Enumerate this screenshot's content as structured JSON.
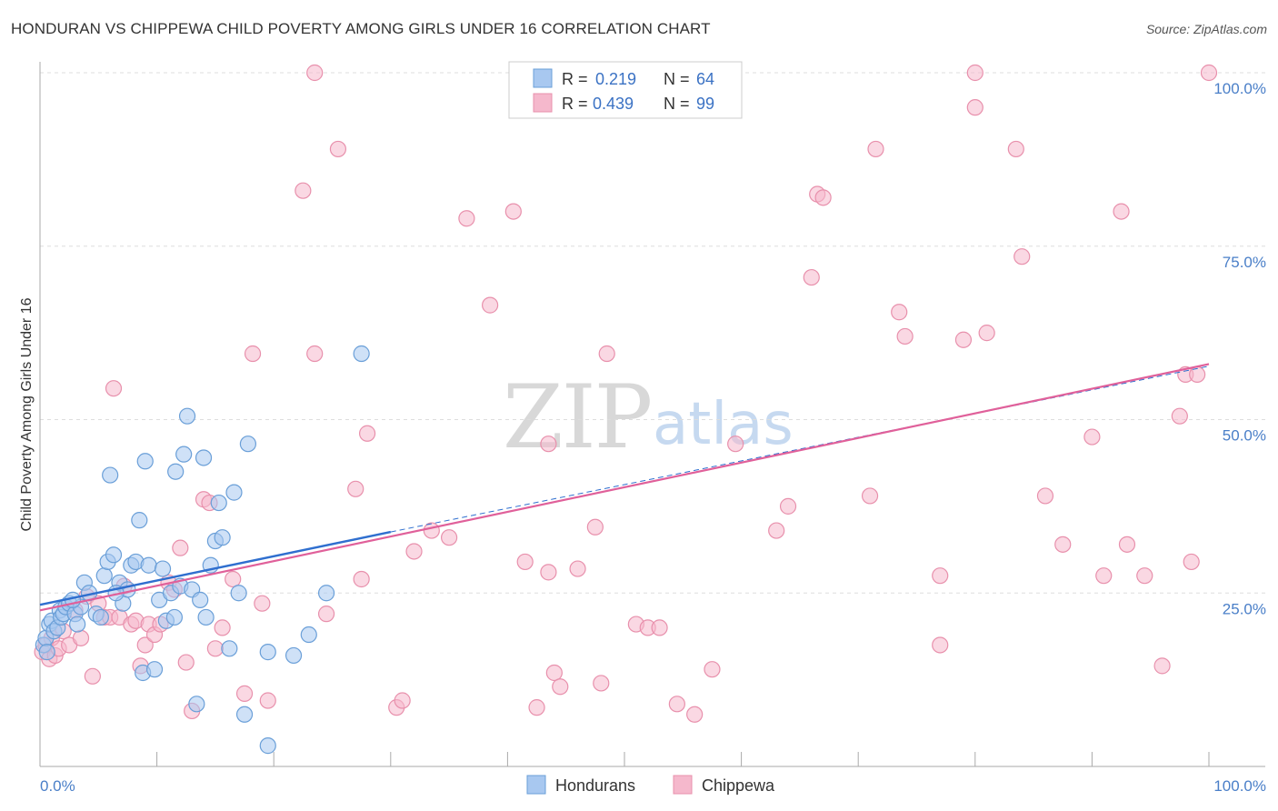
{
  "header": {
    "title": "HONDURAN VS CHIPPEWA CHILD POVERTY AMONG GIRLS UNDER 16 CORRELATION CHART",
    "source": "Source: ZipAtlas.com"
  },
  "watermark": {
    "part1": "ZIP",
    "part2": "atlas"
  },
  "legend": {
    "rows": [
      {
        "r_label": "R =",
        "r_value": "0.219",
        "n_label": "N =",
        "n_value": "64",
        "color": "#a8c8f0"
      },
      {
        "r_label": "R =",
        "r_value": "0.439",
        "n_label": "N =",
        "n_value": "99",
        "color": "#f5b8cc"
      }
    ]
  },
  "bottom_legend": {
    "items": [
      "Hondurans",
      "Chippewa"
    ]
  },
  "colors": {
    "blue_fill": "#a8c8f0",
    "blue_stroke": "#6a9fd8",
    "blue_line": "#2f6fcf",
    "pink_fill": "#f5b8cc",
    "pink_stroke": "#e890ac",
    "pink_line": "#e0609a",
    "tick_text": "#4a7fc8",
    "grid": "#dddddd"
  },
  "chart_data": {
    "type": "scatter",
    "title": "HONDURAN VS CHIPPEWA CHILD POVERTY AMONG GIRLS UNDER 16 CORRELATION CHART",
    "xlabel": "",
    "ylabel": "Child Poverty Among Girls Under 16",
    "xlim": [
      0,
      100
    ],
    "ylim": [
      0,
      100
    ],
    "x_tick_labels": [
      "0.0%",
      "100.0%"
    ],
    "y_ticks": [
      25,
      50,
      75,
      100
    ],
    "y_tick_labels": [
      "25.0%",
      "50.0%",
      "75.0%",
      "100.0%"
    ],
    "grid": true,
    "series": [
      {
        "name": "Hondurans",
        "r": 0.219,
        "n": 64,
        "trend": {
          "x0": 0,
          "y0": 23.3,
          "x1": 30,
          "y1": 33.8,
          "dashed_extension_to_x": 100,
          "dashed_y_at_end": 57.7
        },
        "points": [
          [
            0.3,
            17.5
          ],
          [
            0.5,
            18.5
          ],
          [
            0.6,
            16.5
          ],
          [
            0.8,
            20.5
          ],
          [
            1.0,
            21.0
          ],
          [
            1.2,
            19.5
          ],
          [
            1.5,
            20.0
          ],
          [
            1.7,
            22.5
          ],
          [
            1.8,
            21.5
          ],
          [
            2.0,
            22.0
          ],
          [
            2.2,
            23.0
          ],
          [
            2.5,
            23.5
          ],
          [
            3.0,
            22.0
          ],
          [
            3.2,
            20.5
          ],
          [
            3.5,
            23.0
          ],
          [
            3.8,
            26.5
          ],
          [
            4.2,
            25.0
          ],
          [
            4.8,
            22.0
          ],
          [
            5.2,
            21.5
          ],
          [
            5.5,
            27.5
          ],
          [
            5.8,
            29.5
          ],
          [
            6.0,
            42.0
          ],
          [
            6.3,
            30.5
          ],
          [
            6.8,
            26.5
          ],
          [
            7.1,
            23.5
          ],
          [
            7.5,
            25.5
          ],
          [
            7.8,
            29.0
          ],
          [
            8.2,
            29.5
          ],
          [
            8.5,
            35.5
          ],
          [
            8.8,
            13.5
          ],
          [
            9.0,
            44.0
          ],
          [
            9.3,
            29.0
          ],
          [
            9.8,
            14.0
          ],
          [
            10.2,
            24.0
          ],
          [
            10.5,
            28.5
          ],
          [
            10.8,
            21.0
          ],
          [
            11.2,
            25.0
          ],
          [
            11.6,
            42.5
          ],
          [
            12.0,
            26.0
          ],
          [
            12.3,
            45.0
          ],
          [
            12.6,
            50.5
          ],
          [
            13.0,
            25.5
          ],
          [
            13.4,
            9.0
          ],
          [
            13.7,
            24.0
          ],
          [
            14.0,
            44.5
          ],
          [
            14.2,
            21.5
          ],
          [
            14.6,
            29.0
          ],
          [
            15.0,
            32.5
          ],
          [
            15.3,
            38.0
          ],
          [
            15.6,
            33.0
          ],
          [
            16.2,
            17.0
          ],
          [
            16.6,
            39.5
          ],
          [
            17.0,
            25.0
          ],
          [
            17.5,
            7.5
          ],
          [
            17.8,
            46.5
          ],
          [
            19.5,
            3.0
          ],
          [
            19.5,
            16.5
          ],
          [
            21.7,
            16.0
          ],
          [
            23.0,
            19.0
          ],
          [
            24.5,
            25.0
          ],
          [
            27.5,
            59.5
          ],
          [
            2.8,
            24.0
          ],
          [
            6.5,
            25.0
          ],
          [
            11.5,
            21.5
          ]
        ]
      },
      {
        "name": "Chippewa",
        "r": 0.439,
        "n": 99,
        "trend": {
          "x0": 0,
          "y0": 22.5,
          "x1": 100,
          "y1": 58.0
        },
        "points": [
          [
            0.2,
            16.5
          ],
          [
            0.5,
            17.5
          ],
          [
            0.8,
            15.5
          ],
          [
            1.0,
            18.5
          ],
          [
            1.3,
            16.0
          ],
          [
            1.6,
            17.0
          ],
          [
            2.0,
            19.5
          ],
          [
            2.5,
            17.5
          ],
          [
            3.0,
            22.5
          ],
          [
            3.5,
            18.5
          ],
          [
            4.0,
            24.5
          ],
          [
            4.5,
            13.0
          ],
          [
            5.0,
            23.5
          ],
          [
            5.5,
            21.5
          ],
          [
            6.0,
            21.5
          ],
          [
            6.3,
            54.5
          ],
          [
            6.8,
            21.5
          ],
          [
            7.2,
            26.0
          ],
          [
            7.8,
            20.5
          ],
          [
            8.2,
            21.0
          ],
          [
            8.6,
            14.5
          ],
          [
            9.0,
            17.5
          ],
          [
            9.3,
            20.5
          ],
          [
            9.8,
            19.0
          ],
          [
            10.3,
            20.5
          ],
          [
            11.0,
            26.5
          ],
          [
            11.5,
            25.5
          ],
          [
            12.0,
            31.5
          ],
          [
            12.5,
            15.0
          ],
          [
            13.0,
            8.0
          ],
          [
            14.0,
            38.5
          ],
          [
            14.5,
            38.0
          ],
          [
            15.0,
            17.0
          ],
          [
            15.6,
            20.0
          ],
          [
            16.5,
            27.0
          ],
          [
            17.5,
            10.5
          ],
          [
            18.2,
            59.5
          ],
          [
            19.0,
            23.5
          ],
          [
            19.5,
            9.5
          ],
          [
            22.5,
            83.0
          ],
          [
            23.5,
            100.0
          ],
          [
            23.5,
            59.5
          ],
          [
            24.5,
            22.0
          ],
          [
            25.5,
            89.0
          ],
          [
            27.0,
            40.0
          ],
          [
            27.5,
            27.0
          ],
          [
            28.0,
            48.0
          ],
          [
            30.5,
            8.5
          ],
          [
            31.0,
            9.5
          ],
          [
            32.0,
            31.0
          ],
          [
            33.5,
            34.0
          ],
          [
            35.0,
            33.0
          ],
          [
            36.5,
            79.0
          ],
          [
            38.5,
            66.5
          ],
          [
            40.5,
            80.0
          ],
          [
            41.5,
            29.5
          ],
          [
            42.5,
            8.5
          ],
          [
            43.5,
            28.0
          ],
          [
            43.5,
            46.5
          ],
          [
            44.0,
            13.5
          ],
          [
            44.5,
            11.5
          ],
          [
            46.0,
            28.5
          ],
          [
            47.5,
            34.5
          ],
          [
            48.0,
            12.0
          ],
          [
            48.5,
            59.5
          ],
          [
            51.0,
            20.5
          ],
          [
            52.0,
            20.0
          ],
          [
            53.0,
            20.0
          ],
          [
            54.5,
            9.0
          ],
          [
            56.0,
            7.5
          ],
          [
            57.5,
            14.0
          ],
          [
            59.5,
            46.5
          ],
          [
            63.0,
            34.0
          ],
          [
            64.0,
            37.5
          ],
          [
            66.0,
            70.5
          ],
          [
            66.5,
            82.5
          ],
          [
            67.0,
            82.0
          ],
          [
            71.0,
            39.0
          ],
          [
            71.5,
            89.0
          ],
          [
            73.5,
            65.5
          ],
          [
            74.0,
            62.0
          ],
          [
            77.0,
            27.5
          ],
          [
            77.0,
            17.5
          ],
          [
            79.0,
            61.5
          ],
          [
            80.0,
            95.0
          ],
          [
            80.0,
            100.0
          ],
          [
            81.0,
            62.5
          ],
          [
            83.5,
            89.0
          ],
          [
            84.0,
            73.5
          ],
          [
            86.0,
            39.0
          ],
          [
            87.5,
            32.0
          ],
          [
            90.0,
            47.5
          ],
          [
            91.0,
            27.5
          ],
          [
            92.5,
            80.0
          ],
          [
            93.0,
            32.0
          ],
          [
            94.5,
            27.5
          ],
          [
            96.0,
            14.5
          ],
          [
            97.5,
            50.5
          ],
          [
            98.5,
            29.5
          ]
        ]
      }
    ],
    "extra_pink_points": [
      [
        98.0,
        56.5
      ],
      [
        99.0,
        56.5
      ],
      [
        100.0,
        100.0
      ]
    ]
  },
  "axis": {
    "ylabel": "Child Poverty Among Girls Under 16",
    "x_left": "0.0%",
    "x_right": "100.0%"
  }
}
